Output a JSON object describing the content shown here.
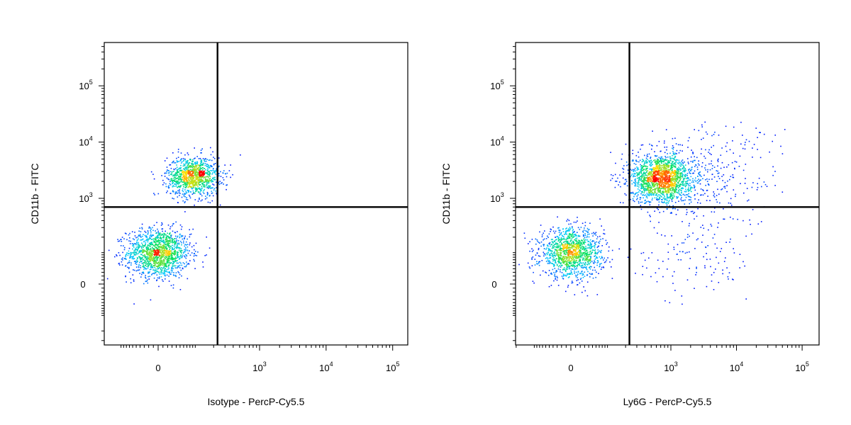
{
  "chart_data": [
    {
      "type": "scatter",
      "style": "flow-cytometry-density-dot-plot",
      "xlabel": "Isotype - PercP-Cy5.5",
      "ylabel": "CD11b - FITC",
      "x_scale": "biexponential",
      "y_scale": "biexponential",
      "x_ticks": [
        {
          "value": 0,
          "base": "0",
          "exp": ""
        },
        {
          "value": 1000,
          "base": "10",
          "exp": "3"
        },
        {
          "value": 10000,
          "base": "10",
          "exp": "4"
        },
        {
          "value": 100000,
          "base": "10",
          "exp": "5"
        }
      ],
      "y_ticks": [
        {
          "value": 0,
          "base": "0",
          "exp": ""
        },
        {
          "value": 1000,
          "base": "10",
          "exp": "3"
        },
        {
          "value": 10000,
          "base": "10",
          "exp": "4"
        },
        {
          "value": 100000,
          "base": "10",
          "exp": "5"
        }
      ],
      "quadrant_gate": {
        "x": 230,
        "y": 700
      },
      "populations": [
        {
          "x_center": 0,
          "y_center": 100,
          "count": 1400,
          "spread": 0.55
        },
        {
          "x_center": 90,
          "y_center": 2500,
          "count": 1100,
          "spread": 0.45
        }
      ],
      "density_colors": [
        "#0000ff",
        "#00c8ff",
        "#00e060",
        "#ffe000",
        "#ff0000"
      ],
      "grid": false,
      "legend": "none"
    },
    {
      "type": "scatter",
      "style": "flow-cytometry-density-dot-plot",
      "xlabel": "Ly6G - PercP-Cy5.5",
      "ylabel": "CD11b - FITC",
      "x_scale": "biexponential",
      "y_scale": "biexponential",
      "x_ticks": [
        {
          "value": 0,
          "base": "0",
          "exp": ""
        },
        {
          "value": 1000,
          "base": "10",
          "exp": "3"
        },
        {
          "value": 10000,
          "base": "10",
          "exp": "4"
        },
        {
          "value": 100000,
          "base": "10",
          "exp": "5"
        }
      ],
      "y_ticks": [
        {
          "value": 0,
          "base": "0",
          "exp": ""
        },
        {
          "value": 1000,
          "base": "10",
          "exp": "3"
        },
        {
          "value": 10000,
          "base": "10",
          "exp": "4"
        },
        {
          "value": 100000,
          "base": "10",
          "exp": "5"
        }
      ],
      "quadrant_gate": {
        "x": 230,
        "y": 700
      },
      "populations": [
        {
          "x_center": 0,
          "y_center": 100,
          "count": 1300,
          "spread": 0.55
        },
        {
          "x_center": 700,
          "y_center": 2300,
          "count": 1700,
          "spread": 0.55
        },
        {
          "x_center": 4000,
          "y_center": 2600,
          "count": 300,
          "spread": 1.2
        },
        {
          "x_center": 2000,
          "y_center": 80,
          "count": 120,
          "spread": 1.0
        }
      ],
      "density_colors": [
        "#0000ff",
        "#00c8ff",
        "#00e060",
        "#ffe000",
        "#ff0000"
      ],
      "grid": false,
      "legend": "none"
    }
  ]
}
